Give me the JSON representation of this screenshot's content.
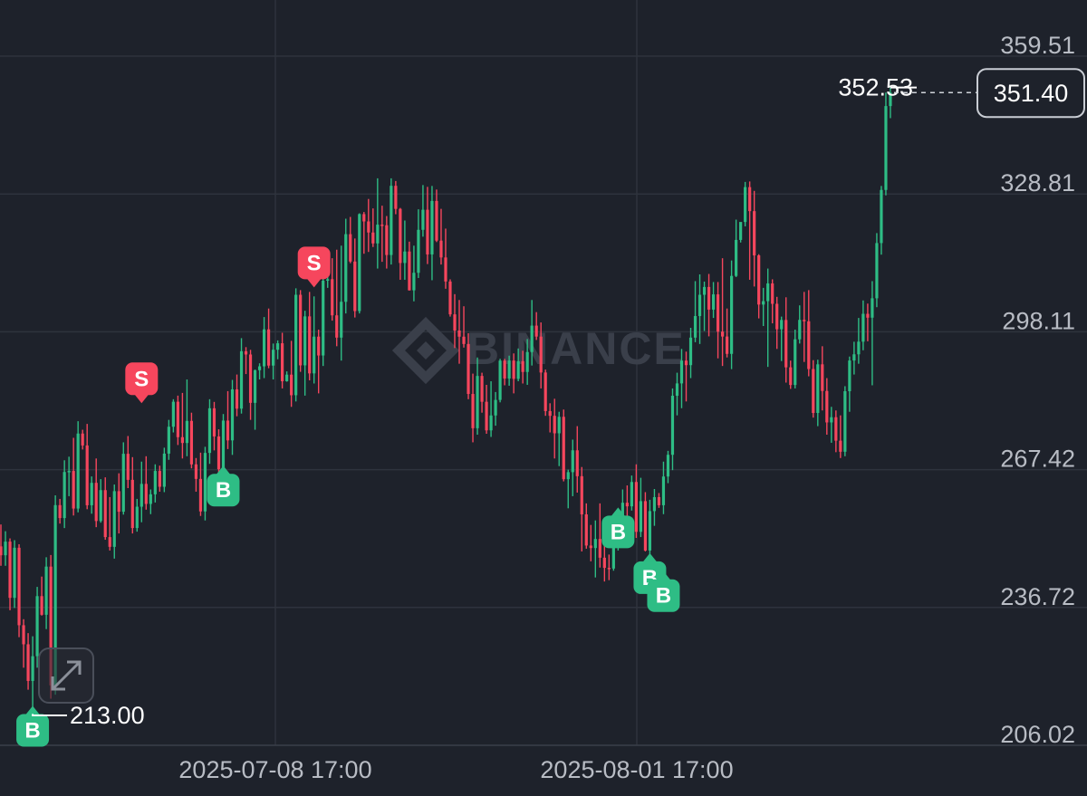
{
  "watermark": "BINANCE",
  "colors": {
    "up": "#2ebd85",
    "down": "#f6465d",
    "grid": "#2e333d",
    "text": "#b8bcc4",
    "bg": "#1e222b"
  },
  "markers": {
    "buy_label": "B",
    "sell_label": "S"
  },
  "high_label": "352.53",
  "low_label": "213.00",
  "current_price_label": "351.40",
  "expand_icon": "expand-arrows-icon",
  "chart_data": {
    "type": "candlestick",
    "y_ticks": [
      "359.51",
      "328.81",
      "298.11",
      "267.42",
      "236.72",
      "206.02"
    ],
    "x_ticks": [
      "2025-07-08 17:00",
      "2025-08-01 17:00"
    ],
    "ylim": [
      206.02,
      359.51
    ],
    "grid": true,
    "high": 352.53,
    "low": 213.0,
    "last_price": 351.4,
    "trade_markers": [
      {
        "side": "B",
        "candle": 7,
        "price": 215.0
      },
      {
        "side": "S",
        "candle": 31,
        "price": 282.0
      },
      {
        "side": "B",
        "candle": 49,
        "price": 268.5
      },
      {
        "side": "S",
        "candle": 69,
        "price": 307.8
      },
      {
        "side": "B",
        "candle": 136,
        "price": 259.2
      },
      {
        "side": "B",
        "candle": 143,
        "price": 249.0
      },
      {
        "side": "B",
        "candle": 146,
        "price": 245.0
      }
    ],
    "candles": [
      [
        250.32,
        255.2,
        246.0,
        248.34
      ],
      [
        248.34,
        253.7,
        246.0,
        251.38
      ],
      [
        251.38,
        252.1,
        236.1,
        238.86
      ],
      [
        238.86,
        251.7,
        236.6,
        250.02
      ],
      [
        250.02,
        250.8,
        230.1,
        232.76
      ],
      [
        232.76,
        234.1,
        223.3,
        228.52
      ],
      [
        228.52,
        231.0,
        218.4,
        220.35
      ],
      [
        220.35,
        230.3,
        213.0,
        225.86
      ],
      [
        225.86,
        241.3,
        223.3,
        239.24
      ],
      [
        239.24,
        243.6,
        234.9,
        235.09
      ],
      [
        235.09,
        247.9,
        231.9,
        245.82
      ],
      [
        245.82,
        248.4,
        216.4,
        219.36
      ],
      [
        219.36,
        261.7,
        217.3,
        259.51
      ],
      [
        259.51,
        260.9,
        255.4,
        256.63
      ],
      [
        256.63,
        269.5,
        254.4,
        266.89
      ],
      [
        266.89,
        270.3,
        261.5,
        267.12
      ],
      [
        267.12,
        274.5,
        257.2,
        258.75
      ],
      [
        258.75,
        278.2,
        257.9,
        275.45
      ],
      [
        275.45,
        276.3,
        271.9,
        272.8
      ],
      [
        272.8,
        277.6,
        258.6,
        259.48
      ],
      [
        259.48,
        265.9,
        257.6,
        264.47
      ],
      [
        264.47,
        269.9,
        254.6,
        255.97
      ],
      [
        255.97,
        265.3,
        255.6,
        262.85
      ],
      [
        262.85,
        265.7,
        251.8,
        252.39
      ],
      [
        252.39,
        261.3,
        249.4,
        250.22
      ],
      [
        250.22,
        264.1,
        247.6,
        262.62
      ],
      [
        262.62,
        266.6,
        253.2,
        258.04
      ],
      [
        258.04,
        273.5,
        257.4,
        270.94
      ],
      [
        270.94,
        274.9,
        263.3,
        265.14
      ],
      [
        265.14,
        270.2,
        253.2,
        254.41
      ],
      [
        254.41,
        260.9,
        253.6,
        259.16
      ],
      [
        259.16,
        269.2,
        255.7,
        264.24
      ],
      [
        264.24,
        270.4,
        258.5,
        259.78
      ],
      [
        259.78,
        263.0,
        257.5,
        261.92
      ],
      [
        261.92,
        268.6,
        260.1,
        267.12
      ],
      [
        267.12,
        268.3,
        262.5,
        263.6
      ],
      [
        263.6,
        272.3,
        262.4,
        270.98
      ],
      [
        270.98,
        278.5,
        269.6,
        276.97
      ],
      [
        276.97,
        283.1,
        275.7,
        282.54
      ],
      [
        282.54,
        283.9,
        272.9,
        274.65
      ],
      [
        274.65,
        284.5,
        269.9,
        273.35
      ],
      [
        273.35,
        287.5,
        270.4,
        278.27
      ],
      [
        278.27,
        280.1,
        267.7,
        268.59
      ],
      [
        268.59,
        270.0,
        262.5,
        265.35
      ],
      [
        265.35,
        271.2,
        257.1,
        258.11
      ],
      [
        258.11,
        272.5,
        256.1,
        271.14
      ],
      [
        271.14,
        283.1,
        268.7,
        281.08
      ],
      [
        281.08,
        282.5,
        271.7,
        274.81
      ],
      [
        274.81,
        276.4,
        265.3,
        267.5
      ],
      [
        267.5,
        279.8,
        263.8,
        278.34
      ],
      [
        278.34,
        284.9,
        272.0,
        273.93
      ],
      [
        273.93,
        287.4,
        270.7,
        285.29
      ],
      [
        285.29,
        288.6,
        279.3,
        281.0
      ],
      [
        281.0,
        296.7,
        279.9,
        293.79
      ],
      [
        293.79,
        294.7,
        288.7,
        293.06
      ],
      [
        293.06,
        294.1,
        278.5,
        282.29
      ],
      [
        282.29,
        289.7,
        276.3,
        289.56
      ],
      [
        289.56,
        291.1,
        287.5,
        290.42
      ],
      [
        290.42,
        301.4,
        287.8,
        298.66
      ],
      [
        298.66,
        303.3,
        290.0,
        290.59
      ],
      [
        290.59,
        295.5,
        287.5,
        294.12
      ],
      [
        294.12,
        296.2,
        292.0,
        295.56
      ],
      [
        295.56,
        297.9,
        285.5,
        287.1
      ],
      [
        287.1,
        289.3,
        287.0,
        288.57
      ],
      [
        288.57,
        296.1,
        281.4,
        283.99
      ],
      [
        283.99,
        307.8,
        282.6,
        306.36
      ],
      [
        306.36,
        307.4,
        289.2,
        290.64
      ],
      [
        290.64,
        302.8,
        283.9,
        301.55
      ],
      [
        301.55,
        307.0,
        287.3,
        288.85
      ],
      [
        288.85,
        306.0,
        286.6,
        297.04
      ],
      [
        297.04,
        298.6,
        284.4,
        292.84
      ],
      [
        292.84,
        312.3,
        290.5,
        309.49
      ],
      [
        309.49,
        311.5,
        307.9,
        309.83
      ],
      [
        309.83,
        314.5,
        300.6,
        301.78
      ],
      [
        301.78,
        316.4,
        294.9,
        296.82
      ],
      [
        296.82,
        317.3,
        291.7,
        304.8
      ],
      [
        304.8,
        323.3,
        302.2,
        319.86
      ],
      [
        319.86,
        323.7,
        313.4,
        313.77
      ],
      [
        313.77,
        318.9,
        301.3,
        302.73
      ],
      [
        302.73,
        324.5,
        302.2,
        324.33
      ],
      [
        324.33,
        324.8,
        315.5,
        322.7
      ],
      [
        322.7,
        327.7,
        315.9,
        320.23
      ],
      [
        320.23,
        325.6,
        317.0,
        317.8
      ],
      [
        317.8,
        332.3,
        312.2,
        321.98
      ],
      [
        321.98,
        326.2,
        313.7,
        321.85
      ],
      [
        321.85,
        323.9,
        312.2,
        315.22
      ],
      [
        315.22,
        332.3,
        313.1,
        330.63
      ],
      [
        330.63,
        331.7,
        324.3,
        325.49
      ],
      [
        325.49,
        325.7,
        309.7,
        313.44
      ],
      [
        313.44,
        322.9,
        309.7,
        316.0
      ],
      [
        316.0,
        318.2,
        307.3,
        307.35
      ],
      [
        307.35,
        317.3,
        304.9,
        311.26
      ],
      [
        311.26,
        325.4,
        310.1,
        320.83
      ],
      [
        320.83,
        330.8,
        319.3,
        325.3
      ],
      [
        325.3,
        330.4,
        313.2,
        315.35
      ],
      [
        315.35,
        330.6,
        309.6,
        327.26
      ],
      [
        327.26,
        329.8,
        318.1,
        318.42
      ],
      [
        318.42,
        325.5,
        313.1,
        314.67
      ],
      [
        314.67,
        321.1,
        307.7,
        309.32
      ],
      [
        309.32,
        309.8,
        301.5,
        302.0
      ],
      [
        302.0,
        306.5,
        294.5,
        298.4
      ],
      [
        298.4,
        305.2,
        291.0,
        297.03
      ],
      [
        297.03,
        303.8,
        294.6,
        295.4
      ],
      [
        295.4,
        297.8,
        283.1,
        284.27
      ],
      [
        284.27,
        288.8,
        273.5,
        276.64
      ],
      [
        276.64,
        292.4,
        275.2,
        288.28
      ],
      [
        288.28,
        289.0,
        280.1,
        282.53
      ],
      [
        282.53,
        286.3,
        275.4,
        276.16
      ],
      [
        276.16,
        287.1,
        274.7,
        279.48
      ],
      [
        279.48,
        284.7,
        277.2,
        282.94
      ],
      [
        282.94,
        292.1,
        282.4,
        291.7
      ],
      [
        291.7,
        292.1,
        286.2,
        287.71
      ],
      [
        287.71,
        292.8,
        286.1,
        291.71
      ],
      [
        291.71,
        293.3,
        284.4,
        287.64
      ],
      [
        287.64,
        294.4,
        287.1,
        291.57
      ],
      [
        291.57,
        293.9,
        286.6,
        289.17
      ],
      [
        289.17,
        296.5,
        286.3,
        293.61
      ],
      [
        293.61,
        305.2,
        290.6,
        299.49
      ],
      [
        299.49,
        302.5,
        296.3,
        297.05
      ],
      [
        297.05,
        300.2,
        285.5,
        289.05
      ],
      [
        289.05,
        289.7,
        279.4,
        280.46
      ],
      [
        280.46,
        282.2,
        275.7,
        279.4
      ],
      [
        279.4,
        283.2,
        269.9,
        275.51
      ],
      [
        275.51,
        280.3,
        268.2,
        279.18
      ],
      [
        279.18,
        280.8,
        264.8,
        265.29
      ],
      [
        265.29,
        267.4,
        258.8,
        266.85
      ],
      [
        266.85,
        274.1,
        261.5,
        271.72
      ],
      [
        271.72,
        277.1,
        262.3,
        265.95
      ],
      [
        265.95,
        268.0,
        249.2,
        257.45
      ],
      [
        257.45,
        259.9,
        249.8,
        250.51
      ],
      [
        250.51,
        255.1,
        247.0,
        249.95
      ],
      [
        249.95,
        256.1,
        243.4,
        251.97
      ],
      [
        251.97,
        259.9,
        245.6,
        247.8
      ],
      [
        247.8,
        254.1,
        242.5,
        245.54
      ],
      [
        245.54,
        248.5,
        242.8,
        245.38
      ],
      [
        245.38,
        253.8,
        244.9,
        251.11
      ],
      [
        251.11,
        256.2,
        249.4,
        254.97
      ],
      [
        254.97,
        263.0,
        254.3,
        260.04
      ],
      [
        260.04,
        263.9,
        253.0,
        259.24
      ],
      [
        259.24,
        266.1,
        258.3,
        264.66
      ],
      [
        264.66,
        268.6,
        252.2,
        253.56
      ],
      [
        253.56,
        265.6,
        252.4,
        260.4
      ],
      [
        260.4,
        262.4,
        249.2,
        249.4
      ],
      [
        249.4,
        260.7,
        248.6,
        258.18
      ],
      [
        258.18,
        263.1,
        254.9,
        261.29
      ],
      [
        261.29,
        262.2,
        258.9,
        259.49
      ],
      [
        259.49,
        269.2,
        257.5,
        265.88
      ],
      [
        265.88,
        271.6,
        264.4,
        270.72
      ],
      [
        270.72,
        285.5,
        267.3,
        283.87
      ],
      [
        283.87,
        289.0,
        279.5,
        286.62
      ],
      [
        286.62,
        294.3,
        281.1,
        291.7
      ],
      [
        291.7,
        293.7,
        282.6,
        290.69
      ],
      [
        290.69,
        299.0,
        287.8,
        296.82
      ],
      [
        296.82,
        309.4,
        295.8,
        301.62
      ],
      [
        301.62,
        310.9,
        295.4,
        306.36
      ],
      [
        306.36,
        309.3,
        298.3,
        308.1
      ],
      [
        308.1,
        311.0,
        297.1,
        303.06
      ],
      [
        303.06,
        309.2,
        301.2,
        306.45
      ],
      [
        306.45,
        309.2,
        292.2,
        298.15
      ],
      [
        298.15,
        314.5,
        290.5,
        297.06
      ],
      [
        297.06,
        303.3,
        292.4,
        293.2
      ],
      [
        293.2,
        314.0,
        289.8,
        310.56
      ],
      [
        310.56,
        323.1,
        310.3,
        318.58
      ],
      [
        318.58,
        322.4,
        318.0,
        322.58
      ],
      [
        322.58,
        331.5,
        321.6,
        330.34
      ],
      [
        330.34,
        331.6,
        309.7,
        324.99
      ],
      [
        324.99,
        329.5,
        308.2,
        315.13
      ],
      [
        315.13,
        315.4,
        301.1,
        304.18
      ],
      [
        304.18,
        307.9,
        299.4,
        304.94
      ],
      [
        304.94,
        312.2,
        290.3,
        308.89
      ],
      [
        308.89,
        309.8,
        300.0,
        304.35
      ],
      [
        304.35,
        305.9,
        294.3,
        298.68
      ],
      [
        298.68,
        301.5,
        291.6,
        300.75
      ],
      [
        300.75,
        305.8,
        286.8,
        290.2
      ],
      [
        290.2,
        291.7,
        285.4,
        286.27
      ],
      [
        286.27,
        298.6,
        285.5,
        296.44
      ],
      [
        296.44,
        304.0,
        295.5,
        300.77
      ],
      [
        300.77,
        307.0,
        291.4,
        300.46
      ],
      [
        300.46,
        307.4,
        288.2,
        289.82
      ],
      [
        289.82,
        291.8,
        279.0,
        280.04
      ],
      [
        280.04,
        291.9,
        277.1,
        290.87
      ],
      [
        290.87,
        294.9,
        280.6,
        284.94
      ],
      [
        284.94,
        287.8,
        275.2,
        277.93
      ],
      [
        277.93,
        281.4,
        273.4,
        279.09
      ],
      [
        279.09,
        280.6,
        271.3,
        273.86
      ],
      [
        273.86,
        279.5,
        270.0,
        271.4
      ],
      [
        271.4,
        286.0,
        270.4,
        284.88
      ],
      [
        284.88,
        292.6,
        280.3,
        291.72
      ],
      [
        291.72,
        295.9,
        288.6,
        293.1
      ],
      [
        293.1,
        301.2,
        291.0,
        295.92
      ],
      [
        295.92,
        305.1,
        294.0,
        302.12
      ],
      [
        302.12,
        304.4,
        296.0,
        301.26
      ],
      [
        301.26,
        309.4,
        286.2,
        305.58
      ],
      [
        305.58,
        320.1,
        303.6,
        317.88
      ],
      [
        317.88,
        330.6,
        315.3,
        329.71
      ],
      [
        329.71,
        351.4,
        328.5,
        348.39
      ],
      [
        348.39,
        352.5,
        345.7,
        351.4
      ]
    ]
  }
}
